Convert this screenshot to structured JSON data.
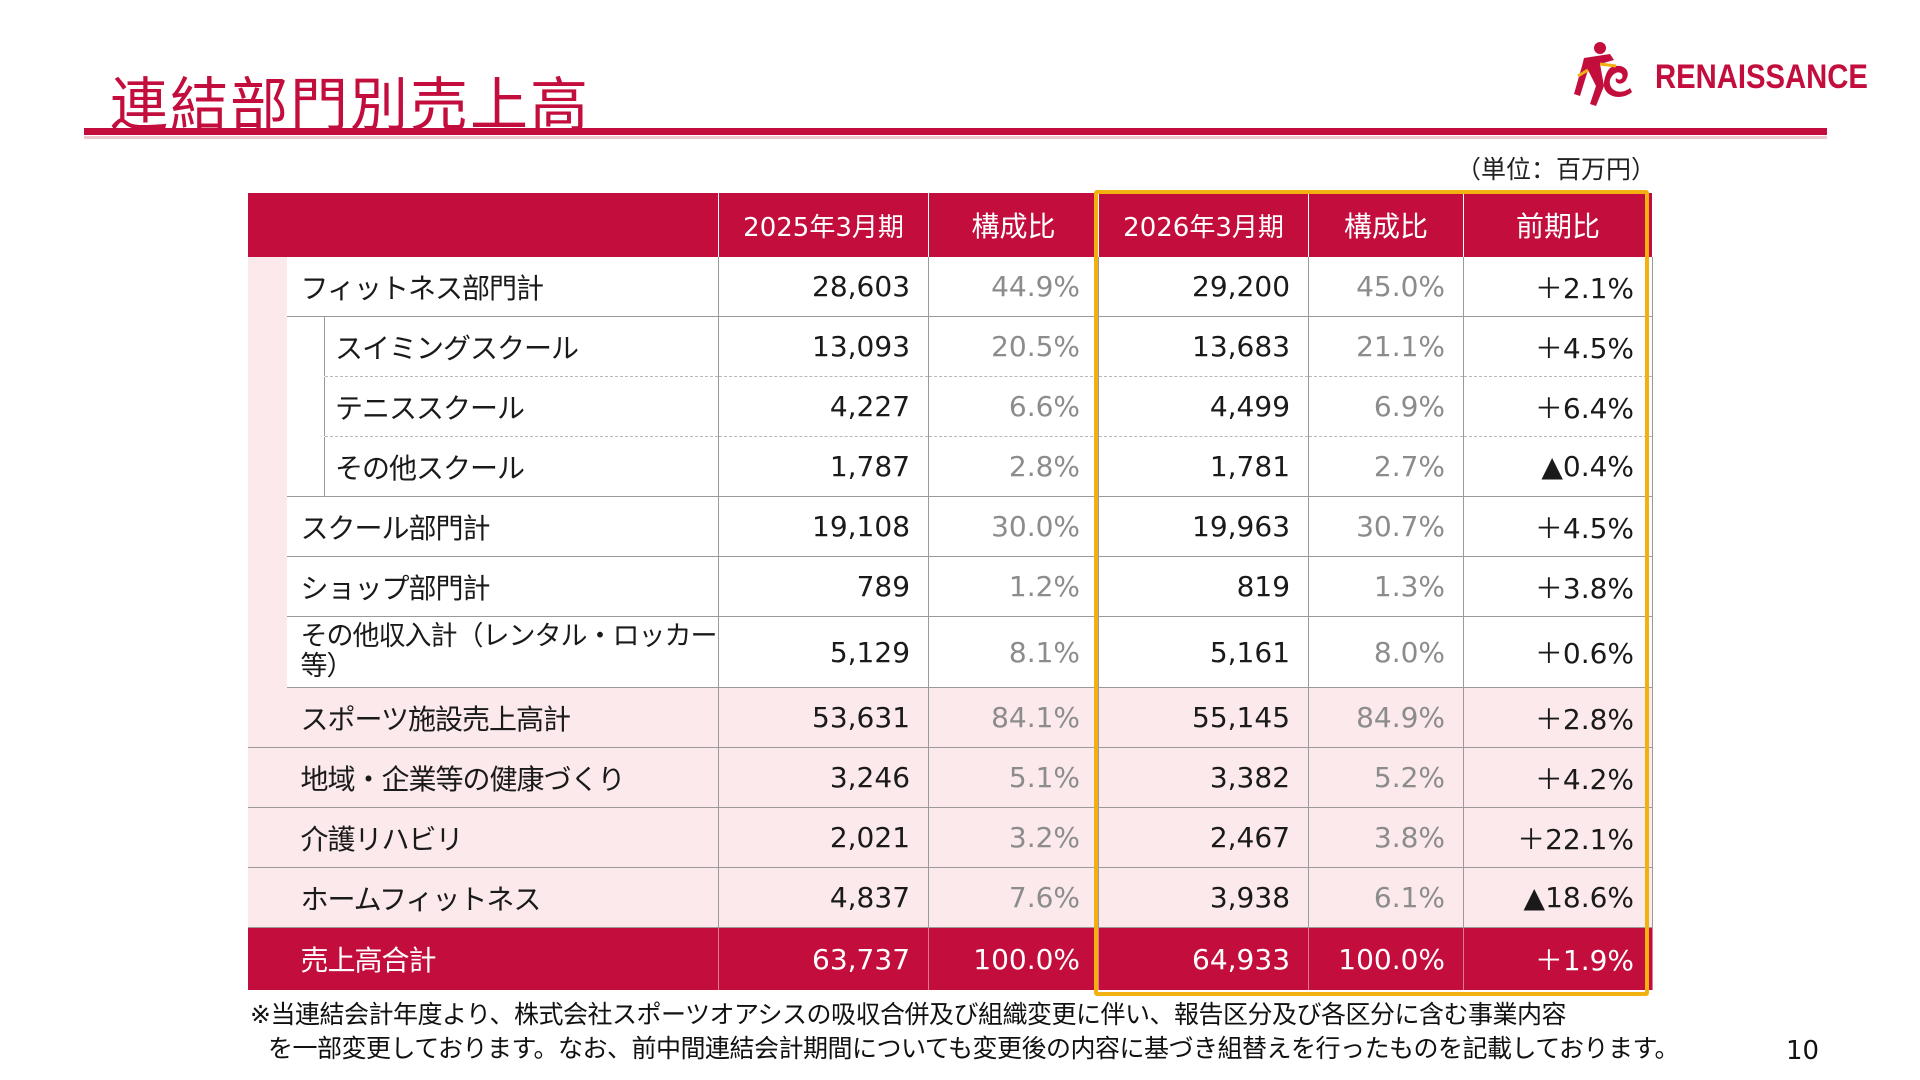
{
  "title": "連結部門別売上高",
  "logo": {
    "text": "RENAISSANCE",
    "mark": "Re",
    "color": "#c30d3c"
  },
  "unit": "（単位：百万円）",
  "table": {
    "headers": [
      "",
      "2025年3月期",
      "構成比",
      "2026年3月期",
      "構成比",
      "前期比"
    ],
    "rows": [
      {
        "label": "フィットネス部門計",
        "v1": "28,603",
        "p1": "44.9%",
        "v2": "29,200",
        "p2": "45.0%",
        "chg": "＋2.1%"
      },
      {
        "label": "スイミングスクール",
        "v1": "13,093",
        "p1": "20.5%",
        "v2": "13,683",
        "p2": "21.1%",
        "chg": "＋4.5%"
      },
      {
        "label": "テニススクール",
        "v1": "4,227",
        "p1": "6.6%",
        "v2": "4,499",
        "p2": "6.9%",
        "chg": "＋6.4%"
      },
      {
        "label": "その他スクール",
        "v1": "1,787",
        "p1": "2.8%",
        "v2": "1,781",
        "p2": "2.7%",
        "chg": "▲0.4%"
      },
      {
        "label": "スクール部門計",
        "v1": "19,108",
        "p1": "30.0%",
        "v2": "19,963",
        "p2": "30.7%",
        "chg": "＋4.5%"
      },
      {
        "label": "ショップ部門計",
        "v1": "789",
        "p1": "1.2%",
        "v2": "819",
        "p2": "1.3%",
        "chg": "＋3.8%"
      },
      {
        "label": "その他収入計（レンタル・ロッカー等）",
        "v1": "5,129",
        "p1": "8.1%",
        "v2": "5,161",
        "p2": "8.0%",
        "chg": "＋0.6%"
      },
      {
        "label": "スポーツ施設売上高計",
        "v1": "53,631",
        "p1": "84.1%",
        "v2": "55,145",
        "p2": "84.9%",
        "chg": "＋2.8%"
      },
      {
        "label": "地域・企業等の健康づくり",
        "v1": "3,246",
        "p1": "5.1%",
        "v2": "3,382",
        "p2": "5.2%",
        "chg": "＋4.2%"
      },
      {
        "label": "介護リハビリ",
        "v1": "2,021",
        "p1": "3.2%",
        "v2": "2,467",
        "p2": "3.8%",
        "chg": "＋22.1%"
      },
      {
        "label": "ホームフィットネス",
        "v1": "4,837",
        "p1": "7.6%",
        "v2": "3,938",
        "p2": "6.1%",
        "chg": "▲18.6%"
      },
      {
        "label": "売上高合計",
        "v1": "63,737",
        "p1": "100.0%",
        "v2": "64,933",
        "p2": "100.0%",
        "chg": "＋1.9%"
      }
    ]
  },
  "footnote": {
    "line1": "※当連結会計年度より、株式会社スポーツオアシスの吸収合併及び組織変更に伴い、報告区分及び各区分に含む事業内容",
    "line2": "を一部変更しております。なお、前中間連結会計期間についても変更後の内容に基づき組替えを行ったものを記載しております。"
  },
  "page_number": "10",
  "colors": {
    "brand": "#c30d3c",
    "highlight": "#f2b011",
    "light_row": "#fbe9ec"
  }
}
